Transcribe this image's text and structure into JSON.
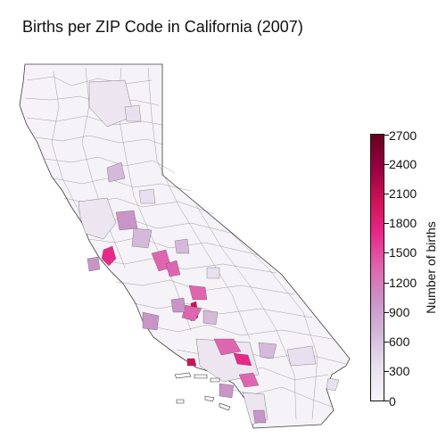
{
  "title": "Births per ZIP Code in California (2007)",
  "colorbar": {
    "label": "Number of births",
    "range": [
      0,
      2700
    ],
    "ticks": [
      "0",
      "300",
      "600",
      "900",
      "1200",
      "1500",
      "1800",
      "2100",
      "2400",
      "2700"
    ],
    "colormap": [
      "#f7f4f9",
      "#e7e1ef",
      "#d4b9da",
      "#c994c7",
      "#df65b0",
      "#e7298a",
      "#ce1256",
      "#980043",
      "#67001f"
    ]
  },
  "map": {
    "region": "California",
    "unit": "ZIP code",
    "outline_color": "#444444",
    "background_fill": "#f7f4f9"
  }
}
